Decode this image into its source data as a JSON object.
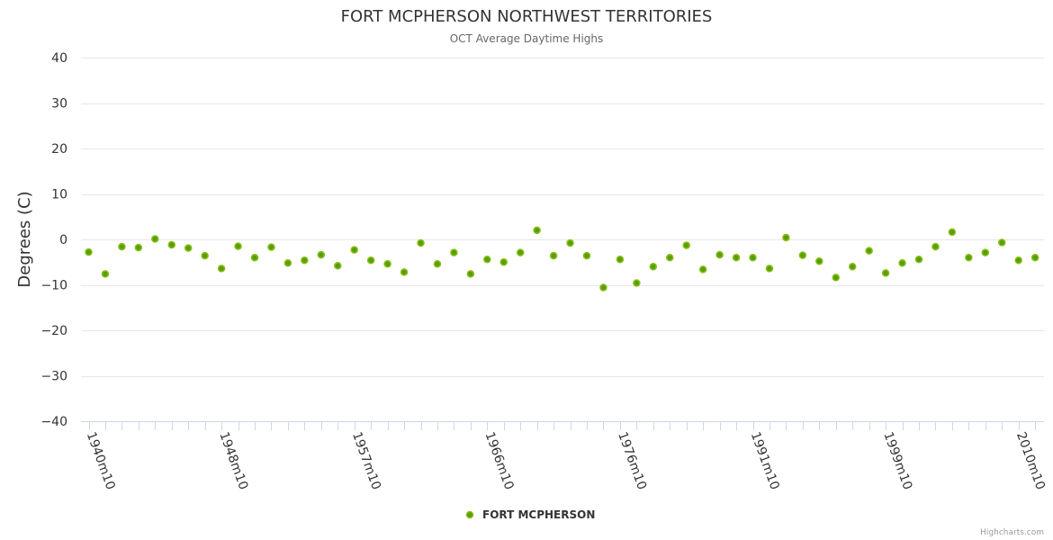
{
  "chart_data": {
    "type": "scatter",
    "title": "FORT MCPHERSON NORTHWEST TERRITORIES",
    "subtitle": "OCT Average Daytime Highs",
    "ylabel": "Degrees (C)",
    "xlabel": "",
    "ylim": [
      -40,
      40
    ],
    "yticks": [
      40,
      30,
      20,
      10,
      0,
      -10,
      -20,
      -30,
      -40
    ],
    "yticks_display": [
      "40",
      "30",
      "20",
      "10",
      "0",
      "−10",
      "−20",
      "−30",
      "−40"
    ],
    "x_tick_labels": [
      "1940m10",
      "1948m10",
      "1957m10",
      "1966m10",
      "1976m10",
      "1991m10",
      "1999m10",
      "2010m10"
    ],
    "x_tick_label_indices": [
      0,
      8,
      16,
      24,
      32,
      40,
      48,
      56
    ],
    "series": [
      {
        "name": "FORT MCPHERSON",
        "color": "#55a100",
        "values": [
          -2.8,
          -7.6,
          -1.6,
          -1.8,
          0.1,
          -1.2,
          -1.9,
          -3.6,
          -6.4,
          -1.5,
          -4.0,
          -1.7,
          -5.2,
          -4.6,
          -3.4,
          -5.8,
          -2.3,
          -4.6,
          -5.4,
          -7.2,
          -0.8,
          -5.4,
          -2.9,
          -7.6,
          -4.4,
          -5.0,
          -2.9,
          2.0,
          -3.6,
          -0.8,
          -3.6,
          -10.6,
          -4.4,
          -9.6,
          -6.0,
          -4.0,
          -1.3,
          -6.6,
          -3.4,
          -4.0,
          -4.0,
          -6.4,
          0.4,
          -3.5,
          -4.8,
          -8.4,
          -6.0,
          -2.5,
          -7.4,
          -5.2,
          -4.4,
          -1.6,
          1.6,
          -4.0,
          -2.9,
          -0.7,
          -4.6,
          -4.0
        ]
      }
    ],
    "legend": {
      "position": "bottom-center"
    }
  },
  "credits": "Highcharts.com"
}
